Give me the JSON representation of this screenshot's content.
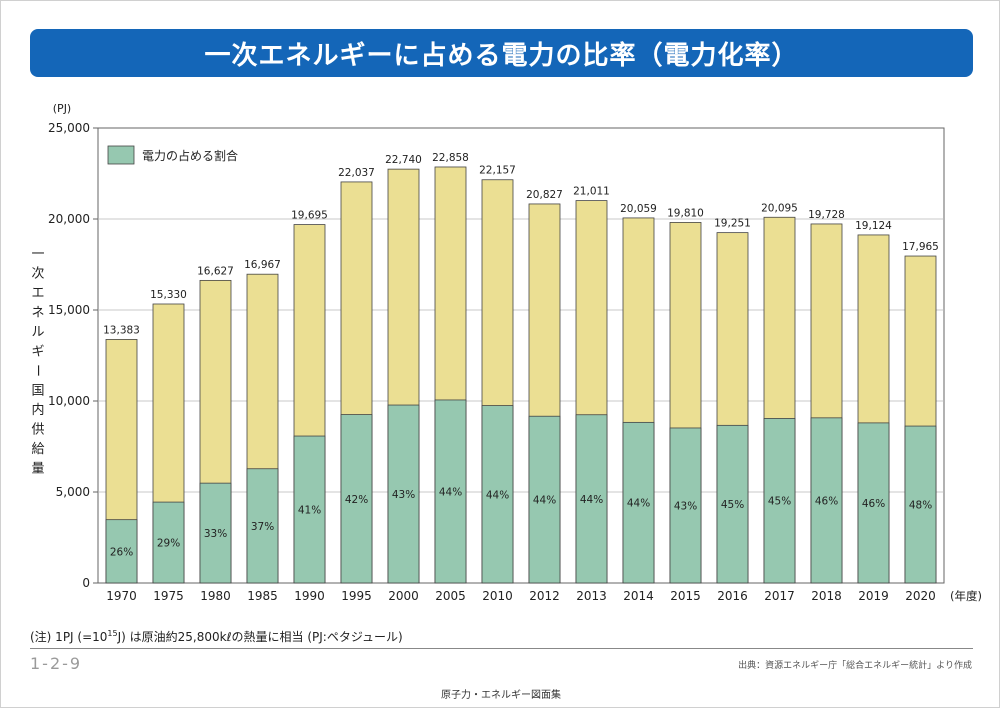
{
  "page": {
    "title": "一次エネルギーに占める電力の比率（電力化率）",
    "footnote_pre": "(注) 1PJ (=10",
    "footnote_sup": "15",
    "footnote_post": "J) は原油約25,800kℓの熱量に相当 (PJ:ペタジュール)",
    "page_number": "1-2-9",
    "source": "出典：資源エネルギー庁「総合エネルギー統計」より作成",
    "book_title": "原子力・エネルギー図面集"
  },
  "colors": {
    "title_bar": "#1466b8",
    "electric_share": "#96c8b0",
    "total": "#ebdf93",
    "bar_stroke": "#444444"
  },
  "chart_data": {
    "type": "bar",
    "y_unit_label": "(PJ)",
    "ylabel": "一次エネルギー国内供給量",
    "x_unit_label": "(年度)",
    "ylim": [
      0,
      25000
    ],
    "y_ticks": [
      0,
      5000,
      10000,
      15000,
      20000,
      25000
    ],
    "y_tick_labels": [
      "0",
      "5,000",
      "10,000",
      "15,000",
      "20,000",
      "25,000"
    ],
    "grid": true,
    "legend": {
      "position": "top-left",
      "label": "電力の占める割合"
    },
    "categories": [
      "1970",
      "1975",
      "1980",
      "1985",
      "1990",
      "1995",
      "2000",
      "2005",
      "2010",
      "2012",
      "2013",
      "2014",
      "2015",
      "2016",
      "2017",
      "2018",
      "2019",
      "2020"
    ],
    "totals": [
      13383,
      15330,
      16627,
      16967,
      19695,
      22037,
      22740,
      22858,
      22157,
      20827,
      21011,
      20059,
      19810,
      19251,
      20095,
      19728,
      19124,
      17965
    ],
    "total_labels": [
      "13,383",
      "15,330",
      "16,627",
      "16,967",
      "19,695",
      "22,037",
      "22,740",
      "22,858",
      "22,157",
      "20,827",
      "21,011",
      "20,059",
      "19,810",
      "19,251",
      "20,095",
      "19,728",
      "19,124",
      "17,965"
    ],
    "electric_share_percent": [
      26,
      29,
      33,
      37,
      41,
      42,
      43,
      44,
      44,
      44,
      44,
      44,
      43,
      45,
      45,
      46,
      46,
      48
    ],
    "electric_share_labels": [
      "26%",
      "29%",
      "33%",
      "37%",
      "41%",
      "42%",
      "43%",
      "44%",
      "44%",
      "44%",
      "44%",
      "44%",
      "43%",
      "45%",
      "45%",
      "46%",
      "46%",
      "48%"
    ]
  }
}
